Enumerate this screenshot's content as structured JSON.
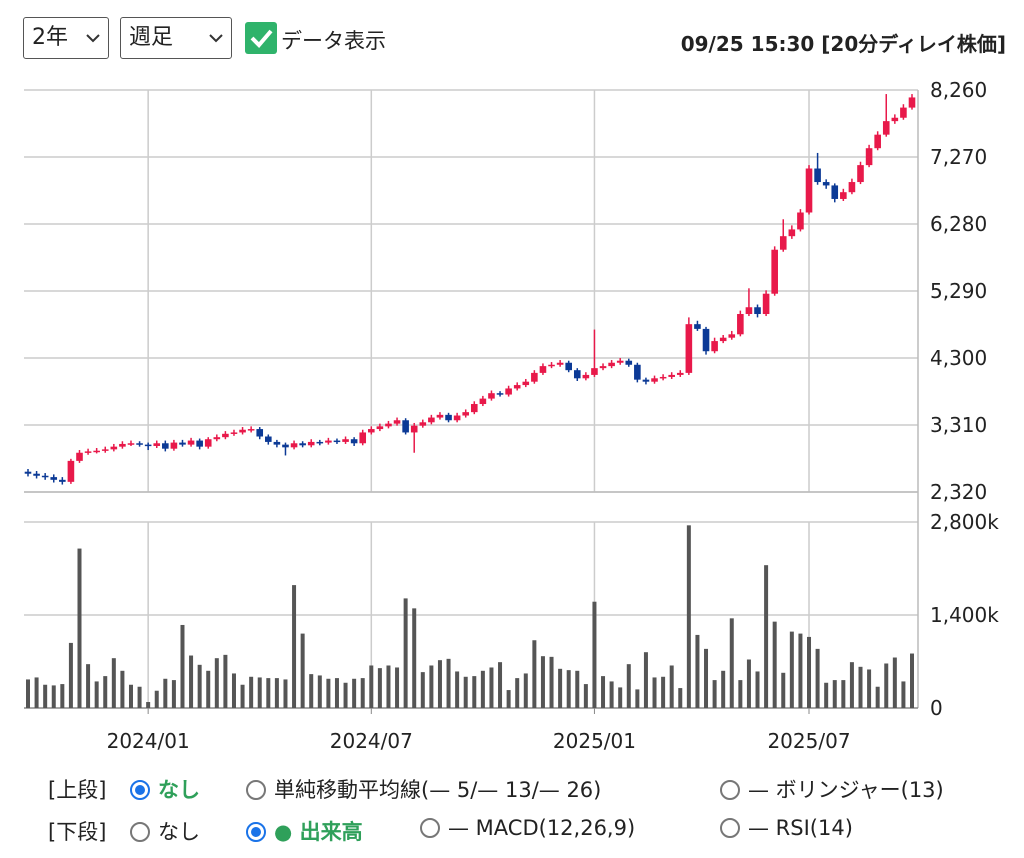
{
  "controls": {
    "period": "2年",
    "interval": "週足",
    "show_data": "データ表示",
    "timestamp": "09/25 15:30 [20分ディレイ株価]"
  },
  "options": {
    "upper": {
      "label": "[上段]",
      "choices": [
        "なし",
        "単純移動平均線(— 5/— 13/— 26)",
        "— ボリンジャー(13)"
      ],
      "selected": 0
    },
    "lower": {
      "label": "[下段]",
      "choices": [
        "なし",
        "● 出来高",
        "— MACD(12,26,9)",
        "— RSI(14)"
      ],
      "selected": 1
    }
  },
  "chart_data": {
    "type": "candlestick",
    "up_color": "#e8194a",
    "down_color": "#0c3a96",
    "volume_color": "#555555",
    "grid": true,
    "categories": [
      null,
      null,
      null,
      null,
      null,
      null,
      null,
      null,
      null,
      null,
      null,
      null,
      null,
      null,
      "2024/01",
      null,
      null,
      null,
      null,
      null,
      null,
      null,
      null,
      null,
      null,
      null,
      null,
      null,
      null,
      null,
      null,
      null,
      null,
      null,
      null,
      null,
      null,
      null,
      null,
      null,
      "2024/07",
      null,
      null,
      null,
      null,
      null,
      null,
      null,
      null,
      null,
      null,
      null,
      null,
      null,
      null,
      null,
      null,
      null,
      null,
      null,
      null,
      null,
      null,
      null,
      null,
      null,
      "2025/01",
      null,
      null,
      null,
      null,
      null,
      null,
      null,
      null,
      null,
      null,
      null,
      null,
      null,
      null,
      null,
      null,
      null,
      null,
      null,
      null,
      null,
      null,
      null,
      null,
      "2025/07",
      null,
      null,
      null,
      null,
      null,
      null,
      null,
      null,
      null,
      null,
      null,
      null
    ],
    "open": [
      2620,
      2590,
      2560,
      2540,
      2500,
      2470,
      2780,
      2900,
      2920,
      2930,
      2950,
      2990,
      3030,
      3040,
      3020,
      3000,
      3040,
      2960,
      3050,
      3020,
      3080,
      2990,
      3100,
      3130,
      3180,
      3200,
      3240,
      3250,
      3140,
      3060,
      3020,
      2980,
      3040,
      3010,
      3060,
      3050,
      3080,
      3060,
      3100,
      3040,
      3200,
      3250,
      3290,
      3330,
      3380,
      3200,
      3300,
      3350,
      3420,
      3460,
      3380,
      3450,
      3500,
      3620,
      3700,
      3780,
      3760,
      3850,
      3900,
      3950,
      4080,
      4180,
      4200,
      4230,
      4120,
      4000,
      4050,
      4150,
      4180,
      4230,
      4260,
      4200,
      3980,
      3950,
      4000,
      4020,
      4050,
      4080,
      4800,
      4730,
      4400,
      4550,
      4600,
      4650,
      4950,
      5050,
      4950,
      5250,
      5900,
      6100,
      6200,
      6450,
      7100,
      6900,
      6850,
      6650,
      6750,
      6900,
      7150,
      7400,
      7600,
      7800,
      7850,
      8000
    ],
    "high": [
      2660,
      2630,
      2600,
      2580,
      2540,
      2810,
      2940,
      2960,
      2970,
      2990,
      3030,
      3070,
      3080,
      3070,
      3050,
      3080,
      3080,
      3090,
      3090,
      3120,
      3110,
      3130,
      3170,
      3220,
      3240,
      3280,
      3290,
      3280,
      3170,
      3090,
      3050,
      3080,
      3070,
      3100,
      3090,
      3120,
      3110,
      3140,
      3130,
      3240,
      3290,
      3330,
      3370,
      3420,
      3410,
      3340,
      3390,
      3460,
      3500,
      3490,
      3490,
      3540,
      3660,
      3740,
      3820,
      3810,
      3890,
      3940,
      3990,
      4120,
      4220,
      4240,
      4270,
      4260,
      4150,
      4090,
      4720,
      4220,
      4270,
      4300,
      4290,
      4230,
      4010,
      4040,
      4060,
      4090,
      4120,
      4900,
      4850,
      4760,
      4600,
      4640,
      4700,
      5000,
      5330,
      5090,
      5300,
      5950,
      6350,
      6260,
      6500,
      7150,
      7330,
      6940,
      6880,
      6800,
      6950,
      7200,
      7450,
      7650,
      8200,
      7900,
      8050,
      8200
    ],
    "low": [
      2550,
      2520,
      2500,
      2460,
      2430,
      2440,
      2750,
      2870,
      2890,
      2900,
      2920,
      2960,
      3000,
      2990,
      2940,
      2970,
      2920,
      2930,
      2990,
      2990,
      2950,
      2960,
      3070,
      3100,
      3150,
      3170,
      3200,
      3100,
      3020,
      2980,
      2860,
      2950,
      2980,
      2980,
      3010,
      3020,
      3030,
      3030,
      3000,
      3010,
      3170,
      3220,
      3260,
      3300,
      3170,
      2900,
      3270,
      3320,
      3390,
      3350,
      3350,
      3420,
      3470,
      3590,
      3670,
      3730,
      3730,
      3820,
      3870,
      3920,
      4050,
      4150,
      4170,
      4090,
      3960,
      3970,
      4020,
      4120,
      4150,
      4200,
      4170,
      3940,
      3910,
      3920,
      3970,
      3990,
      4020,
      4050,
      4700,
      4350,
      4370,
      4520,
      4570,
      4620,
      4920,
      4900,
      4920,
      5220,
      5870,
      6060,
      6170,
      6420,
      6860,
      6800,
      6600,
      6620,
      6720,
      6870,
      7120,
      7370,
      7570,
      7760,
      7820,
      7970
    ],
    "close": [
      2590,
      2560,
      2540,
      2500,
      2470,
      2780,
      2900,
      2920,
      2930,
      2950,
      2990,
      3030,
      3040,
      3020,
      3000,
      3040,
      2960,
      3050,
      3020,
      3080,
      2990,
      3100,
      3130,
      3180,
      3200,
      3240,
      3250,
      3140,
      3060,
      3020,
      2980,
      3040,
      3010,
      3060,
      3050,
      3080,
      3060,
      3100,
      3040,
      3200,
      3250,
      3290,
      3330,
      3380,
      3200,
      3300,
      3350,
      3420,
      3460,
      3380,
      3450,
      3500,
      3620,
      3700,
      3780,
      3760,
      3850,
      3900,
      3950,
      4080,
      4180,
      4200,
      4230,
      4120,
      4000,
      4050,
      4150,
      4180,
      4230,
      4260,
      4200,
      3980,
      3950,
      4000,
      4020,
      4050,
      4080,
      4800,
      4730,
      4400,
      4550,
      4600,
      4650,
      4950,
      5050,
      4950,
      5250,
      5900,
      6100,
      6200,
      6450,
      7100,
      6900,
      6850,
      6650,
      6750,
      6900,
      7150,
      7400,
      7600,
      7800,
      7850,
      8000,
      8150
    ],
    "volume": [
      430,
      460,
      350,
      340,
      360,
      980,
      2400,
      660,
      400,
      480,
      750,
      560,
      350,
      320,
      90,
      260,
      440,
      420,
      1250,
      790,
      650,
      560,
      750,
      800,
      520,
      350,
      470,
      460,
      450,
      450,
      430,
      1850,
      1120,
      510,
      490,
      440,
      450,
      380,
      440,
      450,
      640,
      600,
      640,
      610,
      1650,
      1500,
      540,
      640,
      720,
      740,
      550,
      470,
      480,
      560,
      610,
      690,
      270,
      450,
      520,
      1020,
      780,
      770,
      590,
      570,
      560,
      360,
      1600,
      480,
      400,
      310,
      660,
      280,
      840,
      460,
      470,
      640,
      300,
      2750,
      1100,
      890,
      420,
      560,
      1350,
      420,
      730,
      550,
      2150,
      1300,
      530,
      1150,
      1120,
      1070,
      890,
      380,
      420,
      420,
      690,
      620,
      580,
      320,
      670,
      760,
      400,
      820
    ],
    "ylim": [
      2320,
      8260
    ],
    "yticks": [
      {
        "value": 2320,
        "label": "2,320"
      },
      {
        "value": 3310,
        "label": "3,310"
      },
      {
        "value": 4300,
        "label": "4,300"
      },
      {
        "value": 5290,
        "label": "5,290"
      },
      {
        "value": 6280,
        "label": "6,280"
      },
      {
        "value": 7270,
        "label": "7,270"
      },
      {
        "value": 8260,
        "label": "8,260"
      }
    ],
    "y2lim": [
      0,
      2800
    ],
    "y2ticks": [
      0,
      {
        "value": 1400,
        "label": "1,400k"
      },
      {
        "value": 2800,
        "label": "2,800k"
      }
    ]
  }
}
